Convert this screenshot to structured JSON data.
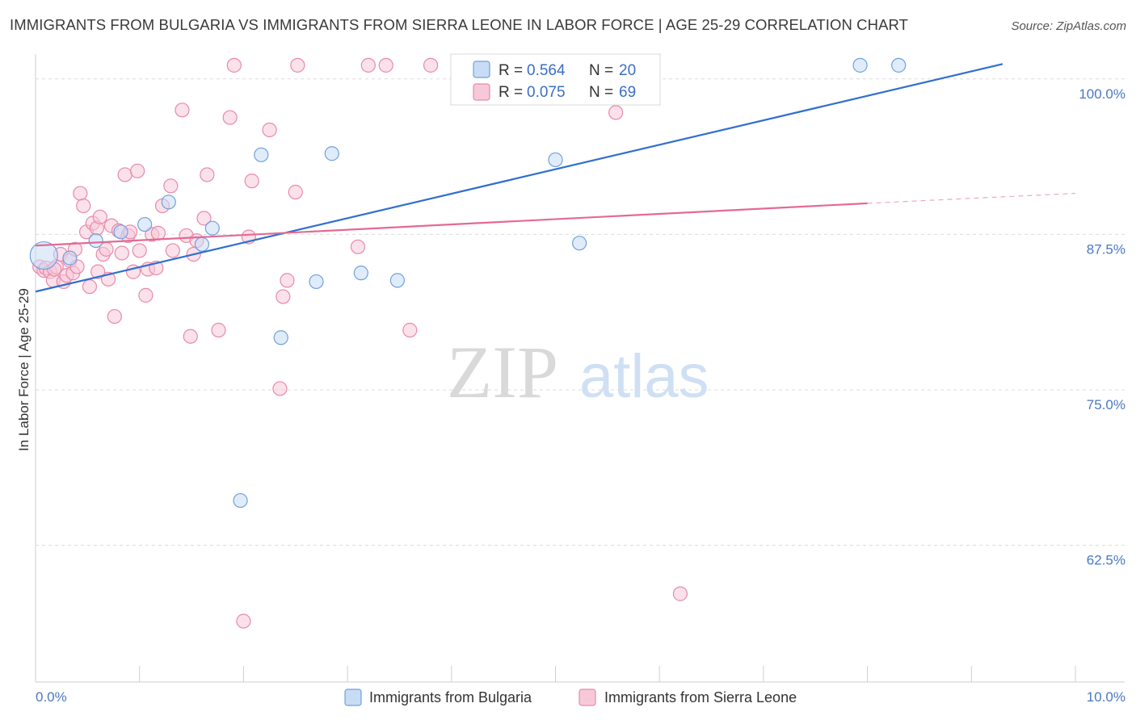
{
  "chart_data": {
    "type": "scatter",
    "title": "IMMIGRANTS FROM BULGARIA VS IMMIGRANTS FROM SIERRA LEONE IN LABOR FORCE | AGE 25-29 CORRELATION CHART",
    "source": "Source: ZipAtlas.com",
    "ylabel": "In Labor Force | Age 25-29",
    "xlabel": "",
    "xlim": [
      0,
      10
    ],
    "ylim": [
      51.5,
      102
    ],
    "x_tick_labels": [
      {
        "value": 0,
        "label": "0.0%"
      },
      {
        "value": 10,
        "label": "10.0%"
      }
    ],
    "y_tick_labels": [
      {
        "value": 100,
        "label": "100.0%"
      },
      {
        "value": 87.5,
        "label": "87.5%"
      },
      {
        "value": 75,
        "label": "75.0%"
      },
      {
        "value": 62.5,
        "label": "62.5%"
      }
    ],
    "grid": "horizontal dashed",
    "watermark": {
      "zip": "ZIP",
      "atlas": "atlas"
    },
    "legend_stats": [
      {
        "r_label": "R =",
        "r_value": "0.564",
        "n_label": "N =",
        "n_value": "20"
      },
      {
        "r_label": "R =",
        "r_value": "0.075",
        "n_label": "N =",
        "n_value": "69"
      }
    ],
    "series": [
      {
        "name": "Immigrants from Bulgaria",
        "color": "#6fa0e0",
        "fill": "#c8dcf5",
        "line_color": "#2f6fd0",
        "trend": {
          "x": [
            0,
            9.3
          ],
          "y": [
            82.9,
            101.2
          ]
        },
        "points": [
          {
            "x": 0.08,
            "y": 85.8,
            "big": true
          },
          {
            "x": 0.33,
            "y": 85.6
          },
          {
            "x": 0.58,
            "y": 87.0
          },
          {
            "x": 0.82,
            "y": 87.7
          },
          {
            "x": 1.05,
            "y": 88.3
          },
          {
            "x": 1.28,
            "y": 90.1
          },
          {
            "x": 1.6,
            "y": 86.7
          },
          {
            "x": 1.7,
            "y": 88.0
          },
          {
            "x": 1.97,
            "y": 66.1
          },
          {
            "x": 2.17,
            "y": 93.9
          },
          {
            "x": 2.36,
            "y": 79.2
          },
          {
            "x": 2.7,
            "y": 83.7
          },
          {
            "x": 2.85,
            "y": 94.0
          },
          {
            "x": 3.13,
            "y": 84.4
          },
          {
            "x": 3.48,
            "y": 83.8
          },
          {
            "x": 5.0,
            "y": 93.5
          },
          {
            "x": 5.23,
            "y": 86.8
          },
          {
            "x": 5.45,
            "y": 101.1
          },
          {
            "x": 7.93,
            "y": 101.1
          },
          {
            "x": 8.3,
            "y": 101.1
          }
        ]
      },
      {
        "name": "Immigrants from Sierra Leone",
        "color": "#e88aa8",
        "fill": "#f7c9d8",
        "line_color": "#e46a93",
        "trend": {
          "x": [
            0,
            8.0
          ],
          "y": [
            86.6,
            90.0
          ]
        },
        "trend_ext": {
          "x": [
            8.0,
            10.0
          ],
          "y": [
            90.0,
            90.8
          ]
        },
        "points": [
          {
            "x": 0.04,
            "y": 84.9
          },
          {
            "x": 0.08,
            "y": 84.6
          },
          {
            "x": 0.1,
            "y": 84.8
          },
          {
            "x": 0.14,
            "y": 84.5
          },
          {
            "x": 0.17,
            "y": 83.8
          },
          {
            "x": 0.2,
            "y": 84.9
          },
          {
            "x": 0.24,
            "y": 85.9
          },
          {
            "x": 0.27,
            "y": 83.7
          },
          {
            "x": 0.3,
            "y": 84.2
          },
          {
            "x": 0.33,
            "y": 85.4
          },
          {
            "x": 0.36,
            "y": 84.4
          },
          {
            "x": 0.38,
            "y": 86.3
          },
          {
            "x": 0.4,
            "y": 84.9
          },
          {
            "x": 0.43,
            "y": 90.8
          },
          {
            "x": 0.46,
            "y": 89.8
          },
          {
            "x": 0.49,
            "y": 87.7
          },
          {
            "x": 0.52,
            "y": 83.3
          },
          {
            "x": 0.55,
            "y": 88.4
          },
          {
            "x": 0.59,
            "y": 88.0
          },
          {
            "x": 0.62,
            "y": 88.9
          },
          {
            "x": 0.65,
            "y": 85.9
          },
          {
            "x": 0.68,
            "y": 86.3
          },
          {
            "x": 0.7,
            "y": 83.9
          },
          {
            "x": 0.73,
            "y": 88.2
          },
          {
            "x": 0.76,
            "y": 80.9
          },
          {
            "x": 0.8,
            "y": 87.8
          },
          {
            "x": 0.83,
            "y": 86.0
          },
          {
            "x": 0.86,
            "y": 92.3
          },
          {
            "x": 0.89,
            "y": 87.4
          },
          {
            "x": 0.91,
            "y": 87.7
          },
          {
            "x": 0.94,
            "y": 84.5
          },
          {
            "x": 0.98,
            "y": 92.6
          },
          {
            "x": 1.0,
            "y": 86.2
          },
          {
            "x": 1.06,
            "y": 82.6
          },
          {
            "x": 1.08,
            "y": 84.7
          },
          {
            "x": 1.12,
            "y": 87.5
          },
          {
            "x": 1.16,
            "y": 84.8
          },
          {
            "x": 1.18,
            "y": 87.6
          },
          {
            "x": 1.22,
            "y": 89.8
          },
          {
            "x": 1.3,
            "y": 91.4
          },
          {
            "x": 1.32,
            "y": 86.2
          },
          {
            "x": 1.41,
            "y": 97.5
          },
          {
            "x": 1.45,
            "y": 87.4
          },
          {
            "x": 1.49,
            "y": 79.3
          },
          {
            "x": 1.52,
            "y": 85.9
          },
          {
            "x": 1.55,
            "y": 87.0
          },
          {
            "x": 1.62,
            "y": 88.8
          },
          {
            "x": 1.65,
            "y": 92.3
          },
          {
            "x": 1.76,
            "y": 79.8
          },
          {
            "x": 1.87,
            "y": 96.9
          },
          {
            "x": 1.91,
            "y": 101.1
          },
          {
            "x": 2.0,
            "y": 56.4
          },
          {
            "x": 2.05,
            "y": 87.3
          },
          {
            "x": 2.08,
            "y": 91.8
          },
          {
            "x": 2.25,
            "y": 95.9
          },
          {
            "x": 2.35,
            "y": 75.1
          },
          {
            "x": 2.38,
            "y": 82.5
          },
          {
            "x": 2.42,
            "y": 83.8
          },
          {
            "x": 2.5,
            "y": 90.9
          },
          {
            "x": 2.52,
            "y": 101.1
          },
          {
            "x": 3.1,
            "y": 86.5
          },
          {
            "x": 3.2,
            "y": 101.1
          },
          {
            "x": 3.37,
            "y": 101.1
          },
          {
            "x": 3.6,
            "y": 79.8
          },
          {
            "x": 3.8,
            "y": 101.1
          },
          {
            "x": 5.58,
            "y": 97.3
          },
          {
            "x": 6.2,
            "y": 58.6
          },
          {
            "x": 0.18,
            "y": 84.7
          },
          {
            "x": 0.6,
            "y": 84.5
          }
        ]
      }
    ]
  }
}
